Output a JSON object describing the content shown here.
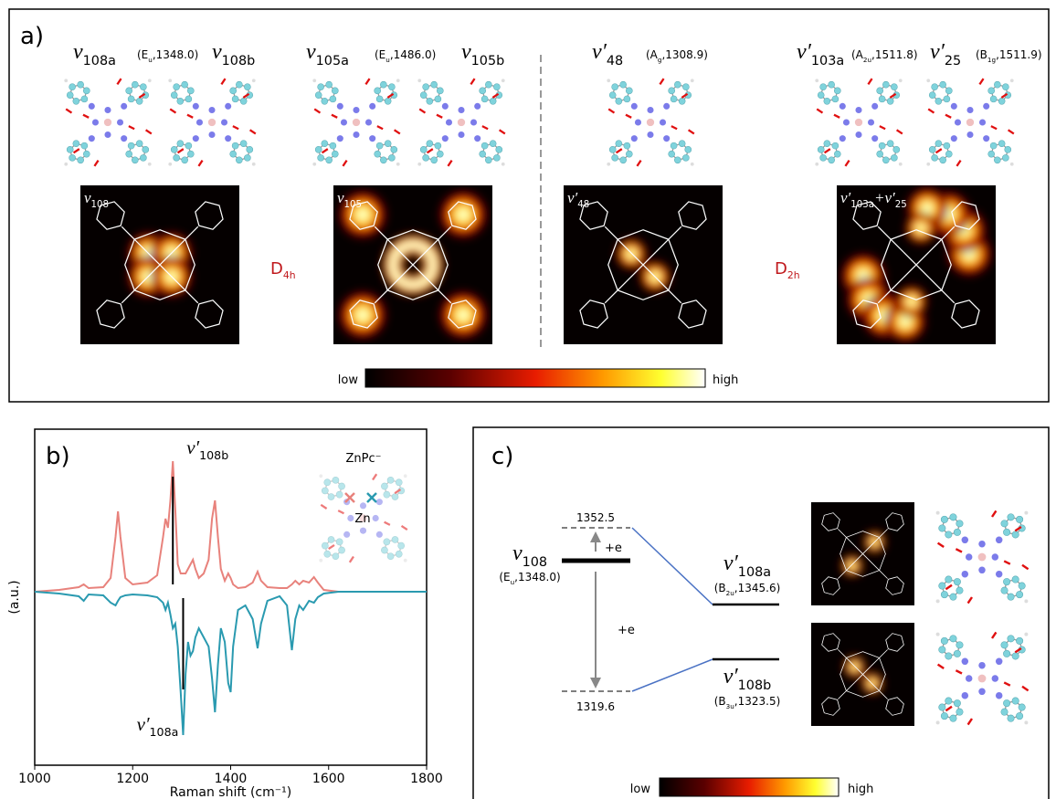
{
  "panel_a": {
    "label": "a)",
    "modes": [
      {
        "symbol": [
          "ν",
          "108a"
        ],
        "info": [
          "(E",
          "u",
          ",1348.0)"
        ]
      },
      {
        "symbol": [
          "ν",
          "108b"
        ]
      },
      {
        "symbol": [
          "ν",
          "105a"
        ],
        "info": [
          "(E",
          "u",
          ",1486.0)"
        ]
      },
      {
        "symbol": [
          "ν",
          "105b"
        ]
      },
      {
        "symbol": [
          "ν′",
          "48"
        ],
        "info": [
          "(A",
          "g",
          ",1308.9)"
        ]
      },
      {
        "symbol": [
          "ν′",
          "103a"
        ],
        "info": [
          "(A",
          "2u",
          ",1511.8)"
        ]
      },
      {
        "symbol": [
          "ν′",
          "25"
        ],
        "info": [
          "(B",
          "1g",
          ",1511.9)"
        ]
      }
    ],
    "maps": [
      {
        "label": [
          "ν",
          "108"
        ]
      },
      {
        "label": [
          "ν",
          "105"
        ]
      },
      {
        "label": [
          "ν′",
          "48"
        ]
      },
      {
        "label": [
          "ν′",
          "103a",
          "+ν′",
          "25"
        ]
      }
    ],
    "groups": [
      [
        "D",
        "4h"
      ],
      [
        "D",
        "2h"
      ]
    ],
    "colorbar": [
      "low",
      "high"
    ]
  },
  "chart_data": {
    "type": "line",
    "label": "b)",
    "x_label": "Raman shift (cm⁻¹)",
    "y_label": "(a.u.)",
    "inset": [
      "ZnPc⁻",
      "Zn"
    ],
    "xlim": [
      1000,
      1800
    ],
    "xticks": [
      1000,
      1200,
      1400,
      1600,
      1800
    ],
    "ylim": [
      -1.9,
      1.78
    ],
    "x": [
      1000,
      1050,
      1090,
      1100,
      1110,
      1140,
      1155,
      1165,
      1170,
      1175,
      1185,
      1200,
      1230,
      1250,
      1262,
      1267,
      1272,
      1277,
      1282,
      1287,
      1292,
      1298,
      1303,
      1308,
      1313,
      1318,
      1323,
      1328,
      1335,
      1345,
      1355,
      1362,
      1368,
      1374,
      1380,
      1388,
      1395,
      1400,
      1405,
      1415,
      1430,
      1445,
      1455,
      1462,
      1475,
      1500,
      1515,
      1525,
      1532,
      1540,
      1548,
      1560,
      1570,
      1578,
      1590,
      1620,
      1700,
      1800
    ],
    "series": [
      {
        "color": "#e8827c",
        "values": [
          0,
          0.02,
          0.05,
          0.08,
          0.04,
          0.05,
          0.15,
          0.6,
          0.88,
          0.6,
          0.15,
          0.08,
          0.1,
          0.18,
          0.6,
          0.8,
          0.7,
          1.0,
          1.43,
          0.9,
          0.3,
          0.2,
          0.2,
          0.2,
          0.25,
          0.3,
          0.35,
          0.25,
          0.15,
          0.2,
          0.35,
          0.8,
          1.0,
          0.6,
          0.25,
          0.12,
          0.2,
          0.15,
          0.08,
          0.04,
          0.05,
          0.1,
          0.22,
          0.12,
          0.05,
          0.04,
          0.04,
          0.08,
          0.12,
          0.08,
          0.12,
          0.1,
          0.16,
          0.1,
          0.02,
          0,
          0,
          0
        ]
      },
      {
        "color": "#2a9ab0",
        "values": [
          0,
          -0.02,
          -0.05,
          -0.1,
          -0.03,
          -0.04,
          -0.12,
          -0.15,
          -0.1,
          -0.06,
          -0.04,
          -0.03,
          -0.04,
          -0.06,
          -0.12,
          -0.2,
          -0.12,
          -0.25,
          -0.4,
          -0.35,
          -0.6,
          -1.1,
          -1.57,
          -0.9,
          -0.55,
          -0.7,
          -0.65,
          -0.5,
          -0.4,
          -0.5,
          -0.6,
          -0.95,
          -1.32,
          -0.8,
          -0.4,
          -0.55,
          -1.0,
          -1.1,
          -0.6,
          -0.2,
          -0.15,
          -0.3,
          -0.62,
          -0.35,
          -0.1,
          -0.05,
          -0.15,
          -0.64,
          -0.3,
          -0.15,
          -0.2,
          -0.1,
          -0.12,
          -0.06,
          -0.02,
          0,
          0,
          0
        ]
      }
    ],
    "markers": [
      {
        "x": 1282,
        "label": [
          "ν′",
          "108b"
        ]
      },
      {
        "x": 1303,
        "label": [
          "ν′",
          "108a"
        ]
      }
    ]
  },
  "panel_c": {
    "label": "c)",
    "left_level": {
      "symbol": [
        "ν",
        "108"
      ],
      "info": [
        "(E",
        "u",
        ",1348.0)"
      ]
    },
    "upper_split": 1352.5,
    "lower_split": 1319.6,
    "transitions": [
      "+e",
      "+e"
    ],
    "right_levels": [
      {
        "symbol": [
          "ν′",
          "108a"
        ],
        "info": [
          "(B",
          "2u",
          ",1345.6)"
        ]
      },
      {
        "symbol": [
          "ν′",
          "108b"
        ],
        "info": [
          "(B",
          "3u",
          ",1323.5)"
        ]
      }
    ],
    "colorbar": [
      "low",
      "high"
    ]
  }
}
